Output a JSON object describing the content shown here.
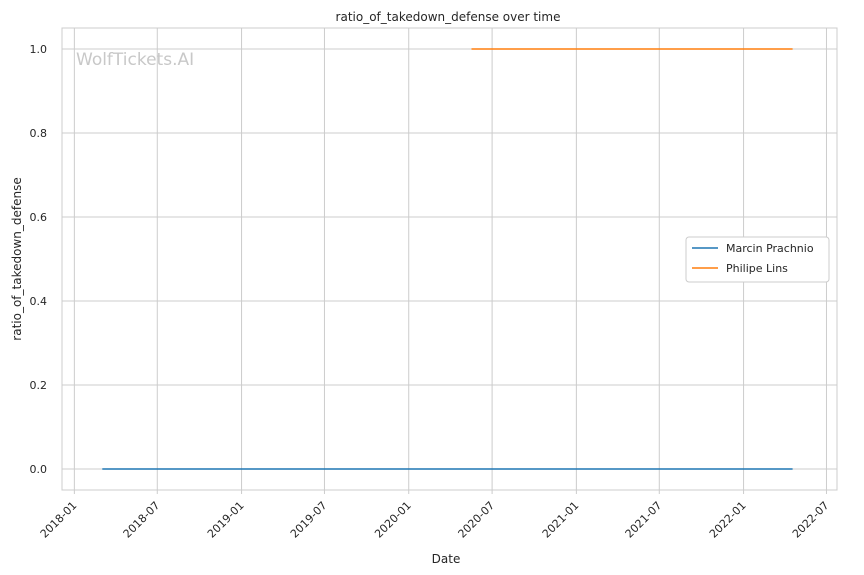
{
  "chart_data": {
    "type": "line",
    "title": "ratio_of_takedown_defense over time",
    "xlabel": "Date",
    "ylabel": "ratio_of_takedown_defense",
    "watermark": "WolfTickets.AI",
    "x_ticks": [
      "2018-01",
      "2018-07",
      "2019-01",
      "2019-07",
      "2020-01",
      "2020-07",
      "2021-01",
      "2021-07",
      "2022-01",
      "2022-07"
    ],
    "y_ticks": [
      "0.0",
      "0.2",
      "0.4",
      "0.6",
      "0.8",
      "1.0"
    ],
    "xlim": [
      "2017-12-05",
      "2022-07-24"
    ],
    "ylim": [
      -0.05,
      1.05
    ],
    "grid": true,
    "legend_position": "center-right",
    "series": [
      {
        "name": "Marcin Prachnio",
        "color": "#1f77b4",
        "x": [
          "2018-03-03",
          "2022-04-18"
        ],
        "y": [
          0.0,
          0.0
        ]
      },
      {
        "name": "Philipe Lins",
        "color": "#ff7f0e",
        "x": [
          "2020-05-17",
          "2022-04-18"
        ],
        "y": [
          1.0,
          1.0
        ]
      }
    ]
  }
}
